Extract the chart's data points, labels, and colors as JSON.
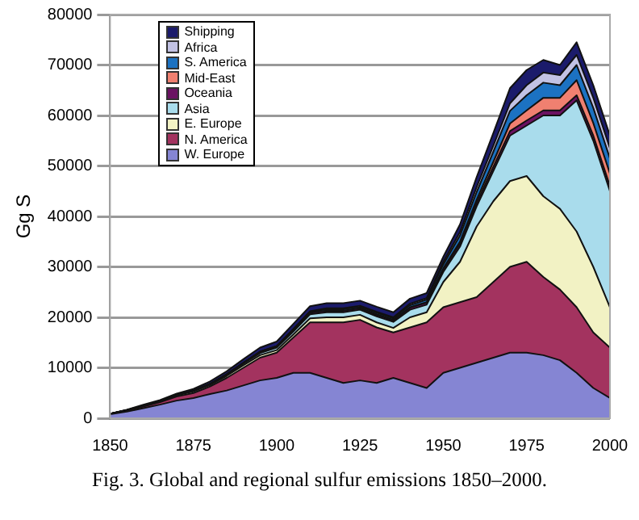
{
  "chart_data": {
    "type": "area",
    "stacked": true,
    "ylabel": "Gg S",
    "annotations": [
      "Fig. 3. Global and regional sulfur emissions 1850–2000."
    ],
    "x": [
      1850,
      1855,
      1860,
      1865,
      1870,
      1875,
      1880,
      1885,
      1890,
      1895,
      1900,
      1905,
      1910,
      1915,
      1920,
      1925,
      1930,
      1935,
      1940,
      1945,
      1950,
      1955,
      1960,
      1965,
      1970,
      1975,
      1980,
      1985,
      1990,
      1995,
      2000
    ],
    "xlim": [
      1850,
      2000
    ],
    "xticks": [
      1850,
      1875,
      1900,
      1925,
      1950,
      1975,
      2000
    ],
    "ylim": [
      0,
      80000
    ],
    "yticks": [
      0,
      10000,
      20000,
      30000,
      40000,
      50000,
      60000,
      70000,
      80000
    ],
    "grid": "y",
    "legend": "top left",
    "series": [
      {
        "name": "W. Europe",
        "color": "#8585d3",
        "values": [
          800,
          1300,
          2000,
          2700,
          3500,
          4000,
          4800,
          5500,
          6500,
          7500,
          8000,
          9000,
          9000,
          8000,
          7000,
          7500,
          7000,
          8000,
          7000,
          6000,
          9000,
          10000,
          11000,
          12000,
          13000,
          13000,
          12500,
          11500,
          9000,
          6000,
          4000
        ]
      },
      {
        "name": "N. America",
        "color": "#a3335f",
        "values": [
          100,
          200,
          300,
          500,
          800,
          1000,
          1500,
          2500,
          3500,
          4500,
          5000,
          7000,
          10000,
          11000,
          12000,
          12000,
          11000,
          9000,
          11000,
          13000,
          13000,
          13000,
          13000,
          15000,
          17000,
          18000,
          15500,
          14000,
          13000,
          11000,
          10000
        ]
      },
      {
        "name": "E. Europe",
        "color": "#f2f2c4",
        "values": [
          0,
          100,
          200,
          200,
          200,
          300,
          300,
          400,
          500,
          500,
          500,
          600,
          800,
          1000,
          1000,
          1000,
          1000,
          900,
          2000,
          2000,
          5000,
          8000,
          14000,
          16000,
          17000,
          17000,
          16000,
          16000,
          15000,
          13000,
          8000
        ]
      },
      {
        "name": "Asia",
        "color": "#a9dcec",
        "values": [
          0,
          0,
          0,
          0,
          100,
          100,
          200,
          200,
          300,
          400,
          500,
          600,
          800,
          1000,
          1000,
          1000,
          1200,
          1200,
          1500,
          1500,
          2000,
          3000,
          4000,
          6000,
          9000,
          10000,
          16000,
          18500,
          26000,
          25000,
          23000
        ]
      },
      {
        "name": "Oceania",
        "color": "#6b1262",
        "values": [
          0,
          0,
          0,
          0,
          0,
          0,
          0,
          100,
          100,
          200,
          200,
          200,
          300,
          300,
          300,
          300,
          300,
          300,
          400,
          400,
          500,
          600,
          700,
          800,
          900,
          1000,
          1000,
          1000,
          1000,
          1000,
          1000
        ]
      },
      {
        "name": "Mid-East",
        "color": "#f08070",
        "values": [
          0,
          0,
          0,
          0,
          0,
          0,
          0,
          0,
          0,
          0,
          0,
          0,
          0,
          0,
          0,
          0,
          100,
          100,
          100,
          100,
          200,
          400,
          600,
          1000,
          1500,
          2000,
          2500,
          2500,
          3000,
          2500,
          2500
        ]
      },
      {
        "name": "S. America",
        "color": "#1c72c2",
        "values": [
          0,
          0,
          0,
          0,
          0,
          0,
          0,
          0,
          100,
          100,
          100,
          200,
          200,
          300,
          300,
          300,
          300,
          300,
          400,
          500,
          800,
          1200,
          1500,
          2000,
          2500,
          3000,
          3000,
          2500,
          3000,
          3000,
          3000
        ]
      },
      {
        "name": "Africa",
        "color": "#c2c2e4",
        "values": [
          0,
          0,
          0,
          0,
          0,
          0,
          0,
          0,
          0,
          0,
          0,
          100,
          100,
          200,
          200,
          200,
          200,
          200,
          300,
          300,
          500,
          700,
          1000,
          1200,
          1500,
          2000,
          2000,
          2000,
          2000,
          2000,
          2000
        ]
      },
      {
        "name": "Shipping",
        "color": "#1b1b6b",
        "values": [
          0,
          100,
          200,
          200,
          300,
          400,
          500,
          600,
          700,
          800,
          900,
          1000,
          1000,
          1000,
          1000,
          1000,
          1000,
          1000,
          1000,
          1000,
          1000,
          1500,
          2000,
          2500,
          3000,
          3000,
          2500,
          2000,
          2500,
          2500,
          2500
        ]
      }
    ]
  }
}
